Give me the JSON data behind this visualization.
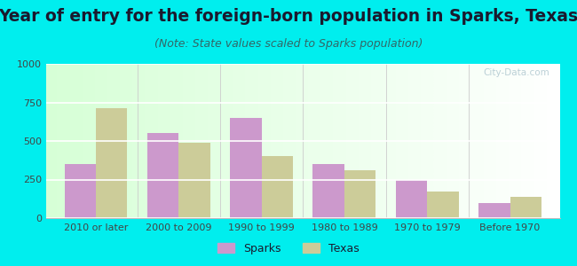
{
  "categories": [
    "2010 or later",
    "2000 to 2009",
    "1990 to 1999",
    "1980 to 1989",
    "1970 to 1979",
    "Before 1970"
  ],
  "sparks_values": [
    350,
    550,
    650,
    350,
    245,
    100
  ],
  "texas_values": [
    710,
    490,
    400,
    310,
    170,
    140
  ],
  "sparks_color": "#cc99cc",
  "texas_color": "#cccc99",
  "title": "Year of entry for the foreign-born population in Sparks, Texas",
  "subtitle": "(Note: State values scaled to Sparks population)",
  "legend_sparks": "Sparks",
  "legend_texas": "Texas",
  "ylim": [
    0,
    1000
  ],
  "yticks": [
    0,
    250,
    500,
    750,
    1000
  ],
  "background_color": "#00eeee",
  "title_fontsize": 13.5,
  "subtitle_fontsize": 9,
  "bar_width": 0.38,
  "tick_fontsize": 8,
  "watermark": "City-Data.com",
  "watermark_color": "#b0c8d0",
  "title_color": "#1a1a2e",
  "subtitle_color": "#336666",
  "tick_color": "#444444",
  "grid_color": "#ffffff",
  "spine_color": "#bbbbbb"
}
